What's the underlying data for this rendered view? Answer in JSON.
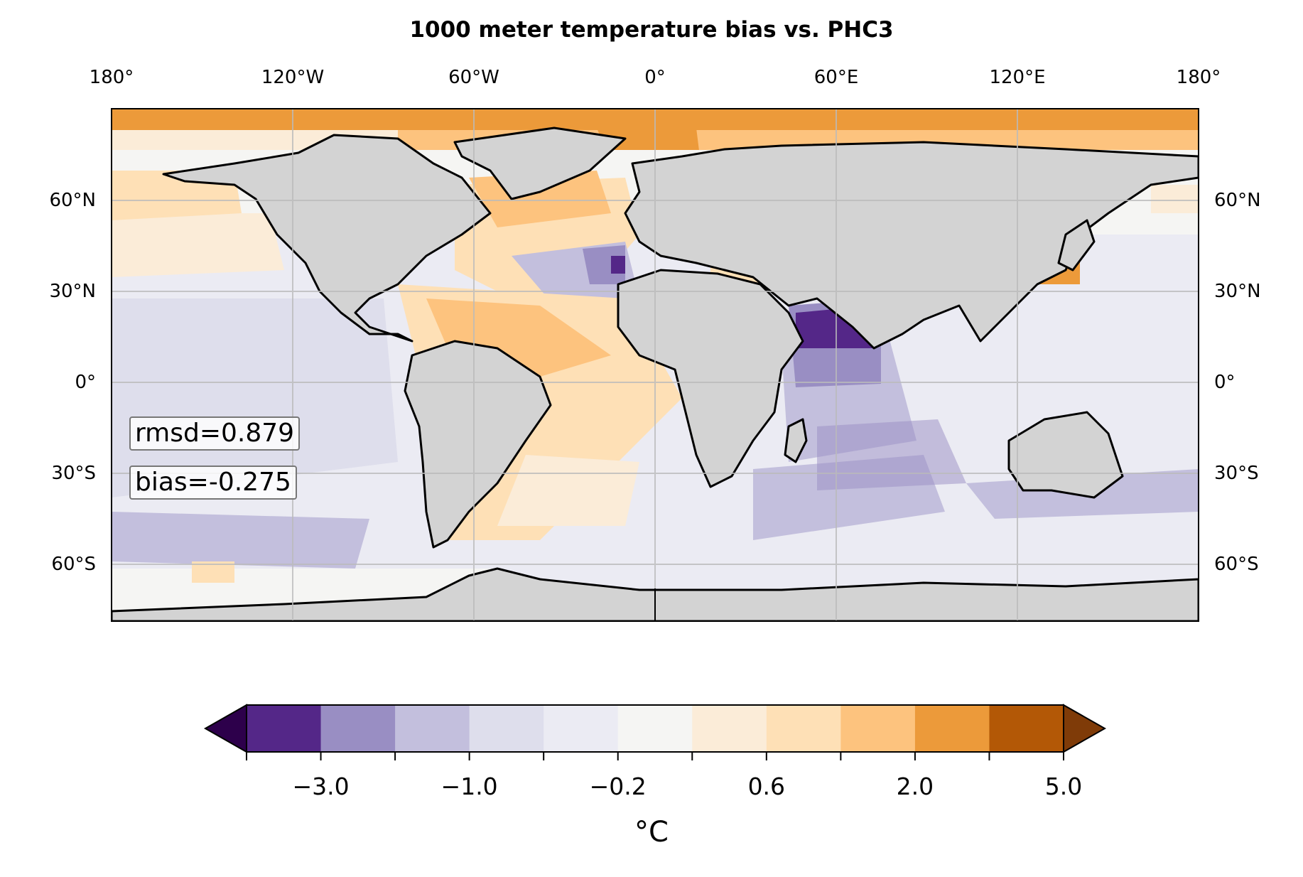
{
  "title": "1000 meter temperature bias vs. PHC3",
  "longitude_ticks": [
    "180°",
    "120°W",
    "60°W",
    "0°",
    "60°E",
    "120°E",
    "180°"
  ],
  "latitude_ticks": [
    "60°N",
    "30°N",
    "0°",
    "30°S",
    "60°S"
  ],
  "stats": {
    "rmsd": "rmsd=0.879",
    "bias": "bias=-0.275"
  },
  "colorbar": {
    "tick_labels": [
      "−3.0",
      "−1.0",
      "−0.2",
      "0.6",
      "2.0",
      "5.0"
    ],
    "label": "°C",
    "colors": [
      "#2d004b",
      "#542788",
      "#998ec3",
      "#c3bfdd",
      "#dedeec",
      "#ebebf3",
      "#f5f5f3",
      "#fbecd8",
      "#fee0b6",
      "#fdc37e",
      "#ec9a3a",
      "#b35806",
      "#7f3b08"
    ],
    "extend": "both"
  },
  "colors": {
    "land": "#d3d3d3",
    "coastline": "#000000",
    "gridline": "#bbbbbb"
  }
}
